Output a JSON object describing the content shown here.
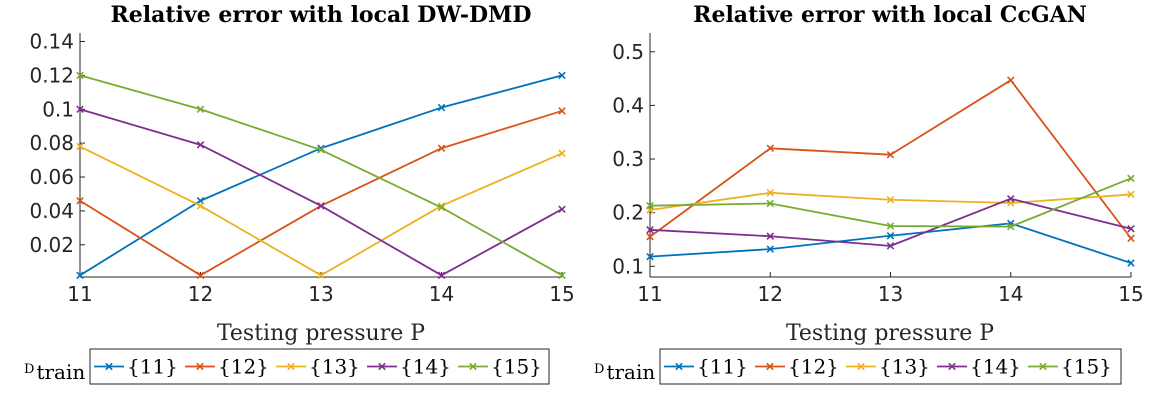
{
  "chart_data": [
    {
      "type": "line",
      "title": "Relative error with local DW-DMD",
      "xlabel": "Testing pressure P",
      "ylabel": "",
      "x": [
        11,
        12,
        13,
        14,
        15
      ],
      "xticks": [
        "11",
        "12",
        "13",
        "14",
        "15"
      ],
      "xlim": [
        11,
        15
      ],
      "ylim": [
        0.001,
        0.145
      ],
      "yticks": [
        0.02,
        0.04,
        0.06,
        0.08,
        0.1,
        0.12,
        0.14
      ],
      "ytick_labels": [
        "0.02",
        "0.04",
        "0.06",
        "0.08",
        "0.1",
        "0.12",
        "0.14"
      ],
      "series": [
        {
          "name": "{11}",
          "color": "#0072BD",
          "values": [
            0.002,
            0.046,
            0.077,
            0.101,
            0.12
          ]
        },
        {
          "name": "{12}",
          "color": "#D95319",
          "values": [
            0.046,
            0.002,
            0.043,
            0.077,
            0.099
          ]
        },
        {
          "name": "{13}",
          "color": "#EDB120",
          "values": [
            0.078,
            0.043,
            0.002,
            0.043,
            0.074
          ]
        },
        {
          "name": "{14}",
          "color": "#7E2F8E",
          "values": [
            0.1,
            0.079,
            0.043,
            0.002,
            0.041
          ]
        },
        {
          "name": "{15}",
          "color": "#77AC30",
          "values": [
            0.12,
            0.1,
            0.076,
            0.042,
            0.002
          ]
        }
      ],
      "legend": {
        "label_prefix": "D",
        "label_sub": "train",
        "placement": "bottom"
      }
    },
    {
      "type": "line",
      "title": "Relative error with local CcGAN",
      "xlabel": "Testing pressure P",
      "ylabel": "",
      "x": [
        11,
        12,
        13,
        14,
        15
      ],
      "xticks": [
        "11",
        "12",
        "13",
        "14",
        "15"
      ],
      "xlim": [
        11,
        15
      ],
      "ylim": [
        0.08,
        0.535
      ],
      "yticks": [
        0.1,
        0.2,
        0.3,
        0.4,
        0.5
      ],
      "ytick_labels": [
        "0.1",
        "0.2",
        "0.3",
        "0.4",
        "0.5"
      ],
      "series": [
        {
          "name": "{11}",
          "color": "#0072BD",
          "values": [
            0.118,
            0.132,
            0.157,
            0.18,
            0.106
          ]
        },
        {
          "name": "{12}",
          "color": "#D95319",
          "values": [
            0.155,
            0.32,
            0.308,
            0.447,
            0.152
          ]
        },
        {
          "name": "{13}",
          "color": "#EDB120",
          "values": [
            0.205,
            0.237,
            0.224,
            0.218,
            0.234
          ]
        },
        {
          "name": "{14}",
          "color": "#7E2F8E",
          "values": [
            0.168,
            0.156,
            0.138,
            0.226,
            0.17
          ]
        },
        {
          "name": "{15}",
          "color": "#77AC30",
          "values": [
            0.213,
            0.217,
            0.175,
            0.174,
            0.264
          ]
        }
      ],
      "legend": {
        "label_prefix": "D",
        "label_sub": "train",
        "placement": "bottom"
      }
    }
  ]
}
